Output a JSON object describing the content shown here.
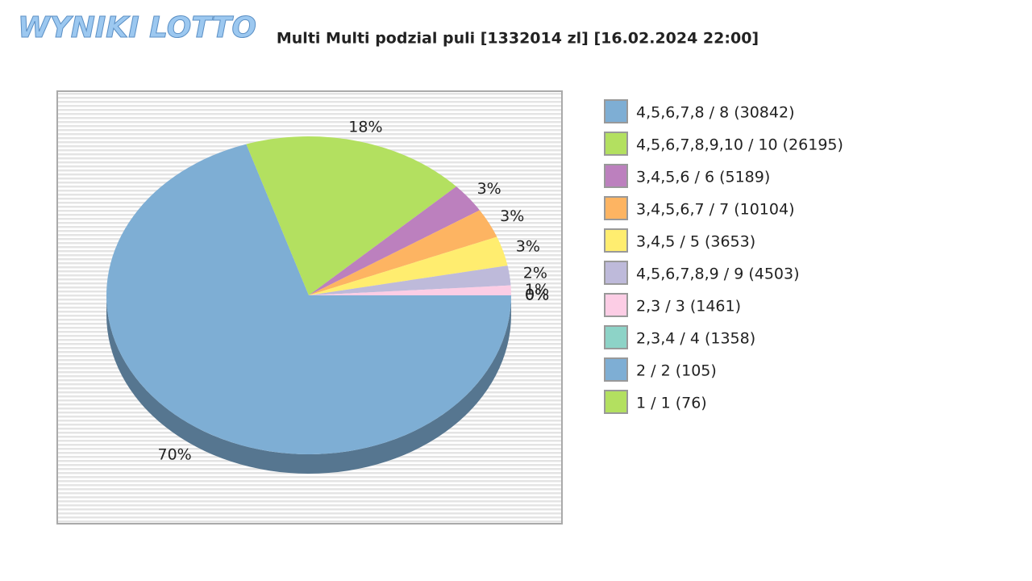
{
  "logo": "WYNIKI LOTTO",
  "chart_data": {
    "type": "pie",
    "title": "Multi Multi podzial puli [1332014 zl] [16.02.2024 22:00]",
    "categories": [
      "4,5,6,7,8 / 8 (30842)",
      "4,5,6,7,8,9,10 / 10 (26195)",
      "3,4,5,6 / 6 (5189)",
      "3,4,5,6,7 / 7 (10104)",
      "3,4,5 / 5 (3653)",
      "4,5,6,7,8,9 / 9 (4503)",
      "2,3 / 3 (1461)",
      "2,3,4 / 4 (1358)",
      "2 / 2 (105)",
      "1 / 1 (76)"
    ],
    "values": [
      70,
      18,
      3,
      3,
      3,
      2,
      1,
      0,
      0,
      0
    ],
    "value_labels": [
      "70%",
      "18%",
      "3%",
      "3%",
      "3%",
      "2%",
      "1%",
      "0%",
      "0%",
      "0%"
    ],
    "colors": [
      "#7eaed4",
      "#b3e060",
      "#bc80be",
      "#fdb462",
      "#ffed6f",
      "#bebada",
      "#fccde5",
      "#8dd3c7",
      "#7eaed4",
      "#b3e060"
    ]
  }
}
